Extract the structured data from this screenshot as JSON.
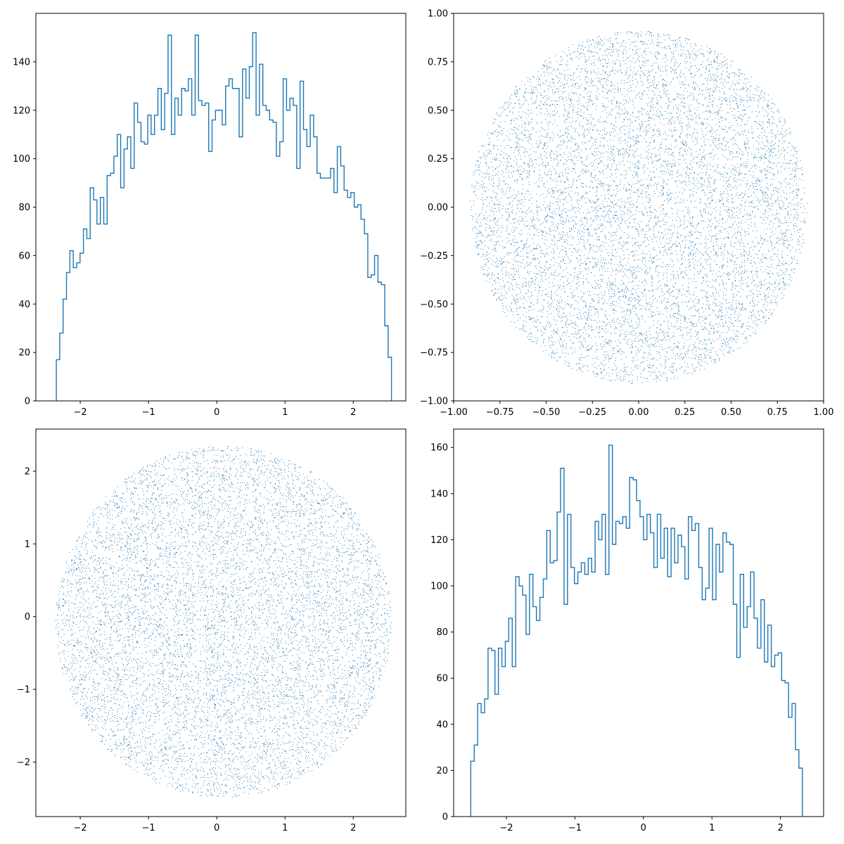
{
  "chart_data": [
    {
      "type": "histogram",
      "position": "top-left",
      "xlim": [
        -2.65,
        2.77
      ],
      "ylim": [
        0,
        160
      ],
      "xticks": [
        -2,
        -1,
        0,
        1,
        2
      ],
      "yticks": [
        0,
        20,
        40,
        60,
        80,
        100,
        120,
        140
      ],
      "bin_edges_range": [
        -2.35,
        2.56
      ],
      "counts": [
        17,
        28,
        42,
        53,
        62,
        55,
        57,
        61,
        71,
        67,
        88,
        83,
        73,
        84,
        73,
        93,
        94,
        101,
        110,
        88,
        104,
        109,
        96,
        123,
        115,
        107,
        106,
        118,
        110,
        118,
        129,
        112,
        127,
        151,
        110,
        125,
        118,
        129,
        128,
        133,
        118,
        151,
        124,
        122,
        123,
        103,
        116,
        120,
        120,
        114,
        130,
        133,
        129,
        129,
        109,
        137,
        125,
        138,
        152,
        118,
        139,
        122,
        120,
        116,
        115,
        101,
        107,
        133,
        120,
        125,
        122,
        96,
        132,
        112,
        105,
        118,
        109,
        94,
        92,
        92,
        92,
        96,
        86,
        105,
        97,
        87,
        84,
        86,
        80,
        81,
        75,
        69,
        51,
        52,
        60,
        49,
        48,
        31,
        18
      ]
    },
    {
      "type": "scatter",
      "position": "top-right",
      "shape": "disk",
      "n_points": 10000,
      "center": [
        0,
        0
      ],
      "radius_x": 0.91,
      "radius_y": 0.91,
      "xlim": [
        -1.0,
        1.0
      ],
      "ylim": [
        -1.0,
        1.0
      ],
      "xticks": [
        -1.0,
        -0.75,
        -0.5,
        -0.25,
        0.0,
        0.25,
        0.5,
        0.75,
        1.0
      ],
      "xtick_labels": [
        "−1.00",
        "−0.75",
        "−0.50",
        "−0.25",
        "0.00",
        "0.25",
        "0.50",
        "0.75",
        "1.00"
      ],
      "yticks": [
        -1.0,
        -0.75,
        -0.5,
        -0.25,
        0.0,
        0.25,
        0.5,
        0.75,
        1.0
      ],
      "ytick_labels": [
        "−1.00",
        "−0.75",
        "−0.50",
        "−0.25",
        "0.00",
        "0.25",
        "0.50",
        "0.75",
        "1.00"
      ]
    },
    {
      "type": "scatter",
      "position": "bottom-left",
      "shape": "disk",
      "n_points": 10000,
      "center": [
        0.1,
        -0.07
      ],
      "radius_x": 2.46,
      "radius_y": 2.42,
      "xlim": [
        -2.65,
        2.77
      ],
      "ylim": [
        -2.75,
        2.58
      ],
      "xticks": [
        -2,
        -1,
        0,
        1,
        2
      ],
      "yticks": [
        -2,
        -1,
        0,
        1,
        2
      ]
    },
    {
      "type": "histogram",
      "position": "bottom-right",
      "xlim": [
        -2.77,
        2.63
      ],
      "ylim": [
        0,
        168
      ],
      "xticks": [
        -2,
        -1,
        0,
        1,
        2
      ],
      "yticks": [
        0,
        20,
        40,
        60,
        80,
        100,
        120,
        140,
        160
      ],
      "bin_edges_range": [
        -2.52,
        2.32
      ],
      "counts": [
        24,
        31,
        49,
        45,
        51,
        73,
        72,
        53,
        73,
        65,
        76,
        86,
        65,
        104,
        100,
        96,
        79,
        105,
        91,
        85,
        95,
        103,
        124,
        110,
        111,
        132,
        151,
        92,
        131,
        108,
        101,
        106,
        110,
        105,
        112,
        106,
        128,
        120,
        131,
        105,
        161,
        118,
        128,
        127,
        130,
        125,
        147,
        146,
        137,
        130,
        120,
        131,
        123,
        108,
        131,
        112,
        125,
        104,
        125,
        110,
        122,
        117,
        103,
        130,
        124,
        127,
        108,
        94,
        99,
        125,
        94,
        118,
        106,
        123,
        119,
        118,
        92,
        69,
        105,
        82,
        91,
        106,
        86,
        73,
        94,
        67,
        83,
        65,
        70,
        71,
        59,
        58,
        43,
        49,
        29,
        21
      ]
    }
  ],
  "colors": {
    "series": "#1f77b4",
    "axes": "#000000",
    "background": "#ffffff"
  }
}
